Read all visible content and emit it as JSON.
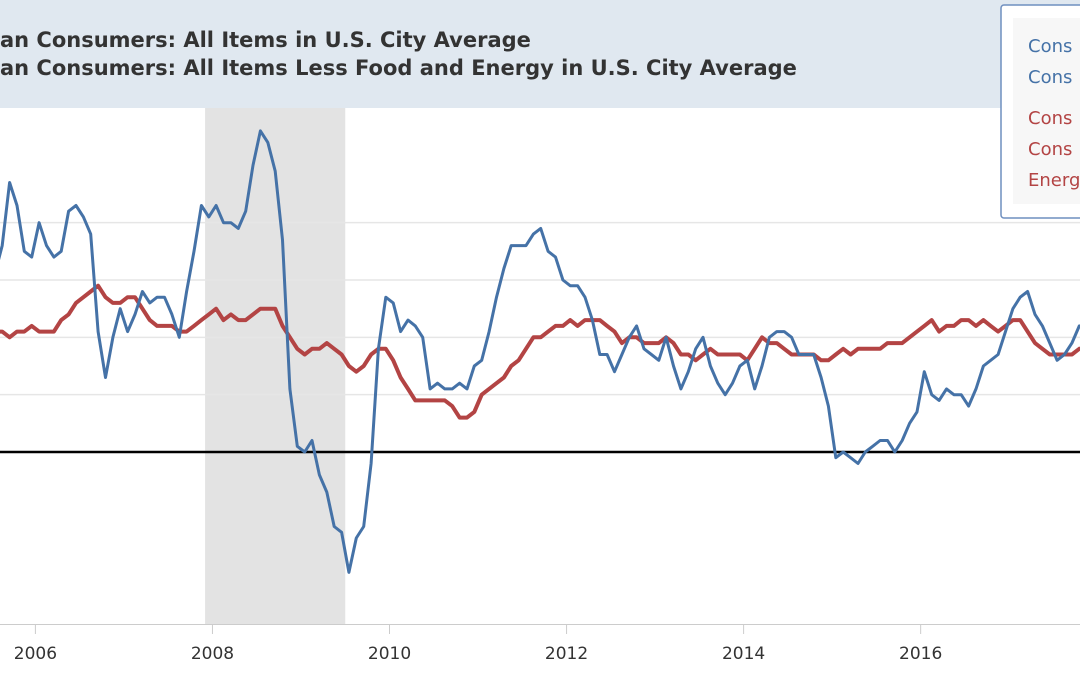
{
  "chart_data": {
    "type": "line",
    "title_lines": [
      "an Consumers: All Items in U.S. City Average",
      "an Consumers: All Items Less Food and Energy in U.S. City Average"
    ],
    "xlabel": "",
    "ylabel": "",
    "x_tick_labels": [
      "2006",
      "2008",
      "2010",
      "2012",
      "2014",
      "2016"
    ],
    "xlim": [
      2005.6,
      2017.8
    ],
    "ylim": [
      -3.0,
      6.0
    ],
    "y_gridlines": [
      0,
      1,
      2,
      3,
      4
    ],
    "zero_line": 0,
    "grid": true,
    "recession": {
      "start": "2007-12",
      "end": "2009-06"
    },
    "legend": {
      "placement": "top-right",
      "entries": [
        {
          "text": "Cons",
          "color": "#4572a7"
        },
        {
          "text": "Cons",
          "color": "#4572a7"
        },
        {
          "text": "Cons",
          "color": "#b34444"
        },
        {
          "text": "Cons",
          "color": "#b34444"
        },
        {
          "text": "Energ",
          "color": "#b34444"
        }
      ]
    },
    "series": [
      {
        "color": "#4572a7",
        "x": [
          "2005-07",
          "2005-08",
          "2005-09",
          "2005-10",
          "2005-11",
          "2005-12",
          "2006-01",
          "2006-02",
          "2006-03",
          "2006-04",
          "2006-05",
          "2006-06",
          "2006-07",
          "2006-08",
          "2006-09",
          "2006-10",
          "2006-11",
          "2006-12",
          "2007-01",
          "2007-02",
          "2007-03",
          "2007-04",
          "2007-05",
          "2007-06",
          "2007-07",
          "2007-08",
          "2007-09",
          "2007-10",
          "2007-11",
          "2007-12",
          "2008-01",
          "2008-02",
          "2008-03",
          "2008-04",
          "2008-05",
          "2008-06",
          "2008-07",
          "2008-08",
          "2008-09",
          "2008-10",
          "2008-11",
          "2008-12",
          "2009-01",
          "2009-02",
          "2009-03",
          "2009-04",
          "2009-05",
          "2009-06",
          "2009-07",
          "2009-08",
          "2009-09",
          "2009-10",
          "2009-11",
          "2009-12",
          "2010-01",
          "2010-02",
          "2010-03",
          "2010-04",
          "2010-05",
          "2010-06",
          "2010-07",
          "2010-08",
          "2010-09",
          "2010-10",
          "2010-11",
          "2010-12",
          "2011-01",
          "2011-02",
          "2011-03",
          "2011-04",
          "2011-05",
          "2011-06",
          "2011-07",
          "2011-08",
          "2011-09",
          "2011-10",
          "2011-11",
          "2011-12",
          "2012-01",
          "2012-02",
          "2012-03",
          "2012-04",
          "2012-05",
          "2012-06",
          "2012-07",
          "2012-08",
          "2012-09",
          "2012-10",
          "2012-11",
          "2012-12",
          "2013-01",
          "2013-02",
          "2013-03",
          "2013-04",
          "2013-05",
          "2013-06",
          "2013-07",
          "2013-08",
          "2013-09",
          "2013-10",
          "2013-11",
          "2013-12",
          "2014-01",
          "2014-02",
          "2014-03",
          "2014-04",
          "2014-05",
          "2014-06",
          "2014-07",
          "2014-08",
          "2014-09",
          "2014-10",
          "2014-11",
          "2014-12",
          "2015-01",
          "2015-02",
          "2015-03",
          "2015-04",
          "2015-05",
          "2015-06",
          "2015-07",
          "2015-08",
          "2015-09",
          "2015-10",
          "2015-11",
          "2015-12",
          "2016-01",
          "2016-02",
          "2016-03",
          "2016-04",
          "2016-05",
          "2016-06",
          "2016-07",
          "2016-08",
          "2016-09",
          "2016-10",
          "2016-11",
          "2016-12",
          "2017-01",
          "2017-02",
          "2017-03",
          "2017-04",
          "2017-05",
          "2017-06",
          "2017-07",
          "2017-08",
          "2017-09",
          "2017-10"
        ],
        "values": [
          3.1,
          3.6,
          4.7,
          4.3,
          3.5,
          3.4,
          4.0,
          3.6,
          3.4,
          3.5,
          4.2,
          4.3,
          4.1,
          3.8,
          2.1,
          1.3,
          2.0,
          2.5,
          2.1,
          2.4,
          2.8,
          2.6,
          2.7,
          2.7,
          2.4,
          2.0,
          2.8,
          3.5,
          4.3,
          4.1,
          4.3,
          4.0,
          4.0,
          3.9,
          4.2,
          5.0,
          5.6,
          5.4,
          4.9,
          3.7,
          1.1,
          0.1,
          0.0,
          0.2,
          -0.4,
          -0.7,
          -1.3,
          -1.4,
          -2.1,
          -1.5,
          -1.3,
          -0.2,
          1.8,
          2.7,
          2.6,
          2.1,
          2.3,
          2.2,
          2.0,
          1.1,
          1.2,
          1.1,
          1.1,
          1.2,
          1.1,
          1.5,
          1.6,
          2.1,
          2.7,
          3.2,
          3.6,
          3.6,
          3.6,
          3.8,
          3.9,
          3.5,
          3.4,
          3.0,
          2.9,
          2.9,
          2.7,
          2.3,
          1.7,
          1.7,
          1.4,
          1.7,
          2.0,
          2.2,
          1.8,
          1.7,
          1.6,
          2.0,
          1.5,
          1.1,
          1.4,
          1.8,
          2.0,
          1.5,
          1.2,
          1.0,
          1.2,
          1.5,
          1.6,
          1.1,
          1.5,
          2.0,
          2.1,
          2.1,
          2.0,
          1.7,
          1.7,
          1.7,
          1.3,
          0.8,
          -0.1,
          0.0,
          -0.1,
          -0.2,
          0.0,
          0.1,
          0.2,
          0.2,
          0.0,
          0.2,
          0.5,
          0.7,
          1.4,
          1.0,
          0.9,
          1.1,
          1.0,
          1.0,
          0.8,
          1.1,
          1.5,
          1.6,
          1.7,
          2.1,
          2.5,
          2.7,
          2.8,
          2.4,
          2.2,
          1.9,
          1.6,
          1.7,
          1.9,
          2.2
        ]
      },
      {
        "color": "#b34444",
        "x": [
          "2005-07",
          "2005-08",
          "2005-09",
          "2005-10",
          "2005-11",
          "2005-12",
          "2006-01",
          "2006-02",
          "2006-03",
          "2006-04",
          "2006-05",
          "2006-06",
          "2006-07",
          "2006-08",
          "2006-09",
          "2006-10",
          "2006-11",
          "2006-12",
          "2007-01",
          "2007-02",
          "2007-03",
          "2007-04",
          "2007-05",
          "2007-06",
          "2007-07",
          "2007-08",
          "2007-09",
          "2007-10",
          "2007-11",
          "2007-12",
          "2008-01",
          "2008-02",
          "2008-03",
          "2008-04",
          "2008-05",
          "2008-06",
          "2008-07",
          "2008-08",
          "2008-09",
          "2008-10",
          "2008-11",
          "2008-12",
          "2009-01",
          "2009-02",
          "2009-03",
          "2009-04",
          "2009-05",
          "2009-06",
          "2009-07",
          "2009-08",
          "2009-09",
          "2009-10",
          "2009-11",
          "2009-12",
          "2010-01",
          "2010-02",
          "2010-03",
          "2010-04",
          "2010-05",
          "2010-06",
          "2010-07",
          "2010-08",
          "2010-09",
          "2010-10",
          "2010-11",
          "2010-12",
          "2011-01",
          "2011-02",
          "2011-03",
          "2011-04",
          "2011-05",
          "2011-06",
          "2011-07",
          "2011-08",
          "2011-09",
          "2011-10",
          "2011-11",
          "2011-12",
          "2012-01",
          "2012-02",
          "2012-03",
          "2012-04",
          "2012-05",
          "2012-06",
          "2012-07",
          "2012-08",
          "2012-09",
          "2012-10",
          "2012-11",
          "2012-12",
          "2013-01",
          "2013-02",
          "2013-03",
          "2013-04",
          "2013-05",
          "2013-06",
          "2013-07",
          "2013-08",
          "2013-09",
          "2013-10",
          "2013-11",
          "2013-12",
          "2014-01",
          "2014-02",
          "2014-03",
          "2014-04",
          "2014-05",
          "2014-06",
          "2014-07",
          "2014-08",
          "2014-09",
          "2014-10",
          "2014-11",
          "2014-12",
          "2015-01",
          "2015-02",
          "2015-03",
          "2015-04",
          "2015-05",
          "2015-06",
          "2015-07",
          "2015-08",
          "2015-09",
          "2015-10",
          "2015-11",
          "2015-12",
          "2016-01",
          "2016-02",
          "2016-03",
          "2016-04",
          "2016-05",
          "2016-06",
          "2016-07",
          "2016-08",
          "2016-09",
          "2016-10",
          "2016-11",
          "2016-12",
          "2017-01",
          "2017-02",
          "2017-03",
          "2017-04",
          "2017-05",
          "2017-06",
          "2017-07",
          "2017-08",
          "2017-09",
          "2017-10"
        ],
        "values": [
          2.1,
          2.1,
          2.0,
          2.1,
          2.1,
          2.2,
          2.1,
          2.1,
          2.1,
          2.3,
          2.4,
          2.6,
          2.7,
          2.8,
          2.9,
          2.7,
          2.6,
          2.6,
          2.7,
          2.7,
          2.5,
          2.3,
          2.2,
          2.2,
          2.2,
          2.1,
          2.1,
          2.2,
          2.3,
          2.4,
          2.5,
          2.3,
          2.4,
          2.3,
          2.3,
          2.4,
          2.5,
          2.5,
          2.5,
          2.2,
          2.0,
          1.8,
          1.7,
          1.8,
          1.8,
          1.9,
          1.8,
          1.7,
          1.5,
          1.4,
          1.5,
          1.7,
          1.8,
          1.8,
          1.6,
          1.3,
          1.1,
          0.9,
          0.9,
          0.9,
          0.9,
          0.9,
          0.8,
          0.6,
          0.6,
          0.7,
          1.0,
          1.1,
          1.2,
          1.3,
          1.5,
          1.6,
          1.8,
          2.0,
          2.0,
          2.1,
          2.2,
          2.2,
          2.3,
          2.2,
          2.3,
          2.3,
          2.3,
          2.2,
          2.1,
          1.9,
          2.0,
          2.0,
          1.9,
          1.9,
          1.9,
          2.0,
          1.9,
          1.7,
          1.7,
          1.6,
          1.7,
          1.8,
          1.7,
          1.7,
          1.7,
          1.7,
          1.6,
          1.8,
          2.0,
          1.9,
          1.9,
          1.8,
          1.7,
          1.7,
          1.7,
          1.7,
          1.6,
          1.6,
          1.7,
          1.8,
          1.7,
          1.8,
          1.8,
          1.8,
          1.8,
          1.9,
          1.9,
          1.9,
          2.0,
          2.1,
          2.2,
          2.3,
          2.1,
          2.2,
          2.2,
          2.3,
          2.3,
          2.2,
          2.3,
          2.2,
          2.1,
          2.2,
          2.3,
          2.3,
          2.1,
          1.9,
          1.8,
          1.7,
          1.7,
          1.7,
          1.7,
          1.8
        ]
      }
    ]
  }
}
